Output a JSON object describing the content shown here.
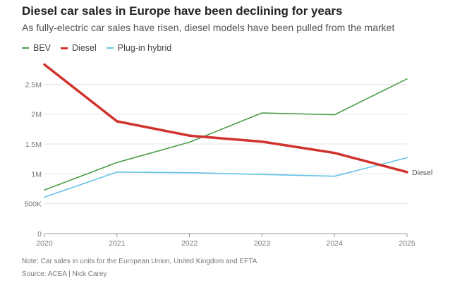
{
  "header": {
    "title": "Diesel car sales in Europe have been declining for years",
    "subtitle": "As fully-electric car sales have risen, diesel models have been pulled from the market"
  },
  "footer": {
    "note": "Note: Car sales in units for the European Union, United Kingdom and EFTA",
    "source": "Source: ACEA | Nick Carey"
  },
  "chart_data": {
    "type": "line",
    "title": "Diesel car sales in Europe have been declining for years",
    "subtitle": "As fully-electric car sales have risen, diesel models have been pulled from the market",
    "x": [
      "2020",
      "2021",
      "2022",
      "2023",
      "2024",
      "2025"
    ],
    "y_ticks": [
      0,
      500000,
      1000000,
      1500000,
      2000000,
      2500000
    ],
    "y_tick_labels": [
      "0",
      "500K",
      "1M",
      "1.5M",
      "2M",
      "2.5M"
    ],
    "ylim": [
      0,
      2800000
    ],
    "grid": true,
    "legend_position": "top-left",
    "series": [
      {
        "name": "BEV",
        "color": "#4a9e4a",
        "width": 1.6,
        "values": [
          730000,
          1190000,
          1530000,
          2020000,
          1990000,
          2590000
        ]
      },
      {
        "name": "Diesel",
        "color": "#d0322d",
        "width": 3.5,
        "values": [
          2830000,
          1880000,
          1640000,
          1540000,
          1350000,
          1030000
        ]
      },
      {
        "name": "Plug-in hybrid",
        "color": "#63c2e8",
        "width": 1.6,
        "values": [
          610000,
          1030000,
          1020000,
          990000,
          960000,
          1270000
        ]
      }
    ],
    "annotations": [
      {
        "text": "Diesel",
        "series": "Diesel",
        "at": "2025"
      }
    ]
  }
}
